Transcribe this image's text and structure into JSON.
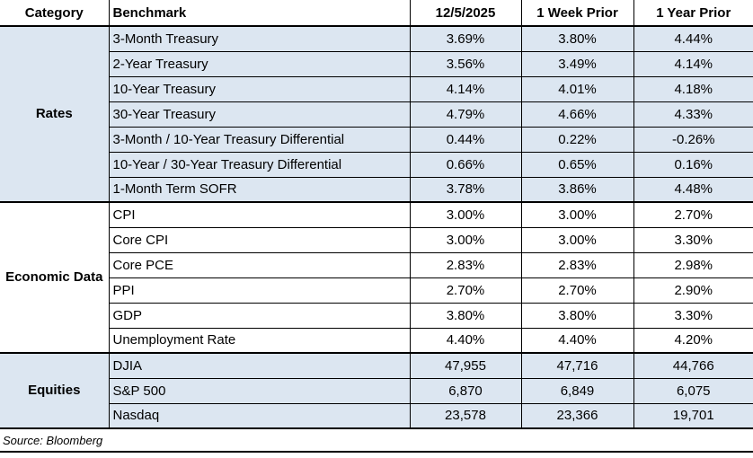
{
  "chart_data": {
    "type": "table",
    "columns": [
      "Category",
      "Benchmark",
      "12/5/2025",
      "1 Week Prior",
      "1 Year Prior"
    ],
    "sections": [
      {
        "category": "Rates",
        "rows": [
          {
            "benchmark": "3-Month Treasury",
            "current": "3.69%",
            "week_prior": "3.80%",
            "year_prior": "4.44%"
          },
          {
            "benchmark": "2-Year Treasury",
            "current": "3.56%",
            "week_prior": "3.49%",
            "year_prior": "4.14%"
          },
          {
            "benchmark": "10-Year Treasury",
            "current": "4.14%",
            "week_prior": "4.01%",
            "year_prior": "4.18%"
          },
          {
            "benchmark": "30-Year Treasury",
            "current": "4.79%",
            "week_prior": "4.66%",
            "year_prior": "4.33%"
          },
          {
            "benchmark": "3-Month / 10-Year Treasury Differential",
            "current": "0.44%",
            "week_prior": "0.22%",
            "year_prior": "-0.26%"
          },
          {
            "benchmark": "10-Year / 30-Year Treasury Differential",
            "current": "0.66%",
            "week_prior": "0.65%",
            "year_prior": "0.16%"
          },
          {
            "benchmark": "1-Month Term SOFR",
            "current": "3.78%",
            "week_prior": "3.86%",
            "year_prior": "4.48%"
          }
        ]
      },
      {
        "category": "Economic Data",
        "rows": [
          {
            "benchmark": "CPI",
            "current": "3.00%",
            "week_prior": "3.00%",
            "year_prior": "2.70%"
          },
          {
            "benchmark": "Core CPI",
            "current": "3.00%",
            "week_prior": "3.00%",
            "year_prior": "3.30%"
          },
          {
            "benchmark": "Core PCE",
            "current": "2.83%",
            "week_prior": "2.83%",
            "year_prior": "2.98%"
          },
          {
            "benchmark": "PPI",
            "current": "2.70%",
            "week_prior": "2.70%",
            "year_prior": "2.90%"
          },
          {
            "benchmark": "GDP",
            "current": "3.80%",
            "week_prior": "3.80%",
            "year_prior": "3.30%"
          },
          {
            "benchmark": "Unemployment Rate",
            "current": "4.40%",
            "week_prior": "4.40%",
            "year_prior": "4.20%"
          }
        ]
      },
      {
        "category": "Equities",
        "rows": [
          {
            "benchmark": "DJIA",
            "current": "47,955",
            "week_prior": "47,716",
            "year_prior": "44,766"
          },
          {
            "benchmark": "S&P 500",
            "current": "6,870",
            "week_prior": "6,849",
            "year_prior": "6,075"
          },
          {
            "benchmark": "Nasdaq",
            "current": "23,578",
            "week_prior": "23,366",
            "year_prior": "19,701"
          }
        ]
      }
    ],
    "source": "Source: Bloomberg"
  },
  "colors": {
    "highlight": "#DCE6F1",
    "border": "#000000",
    "background": "#FFFFFF"
  }
}
